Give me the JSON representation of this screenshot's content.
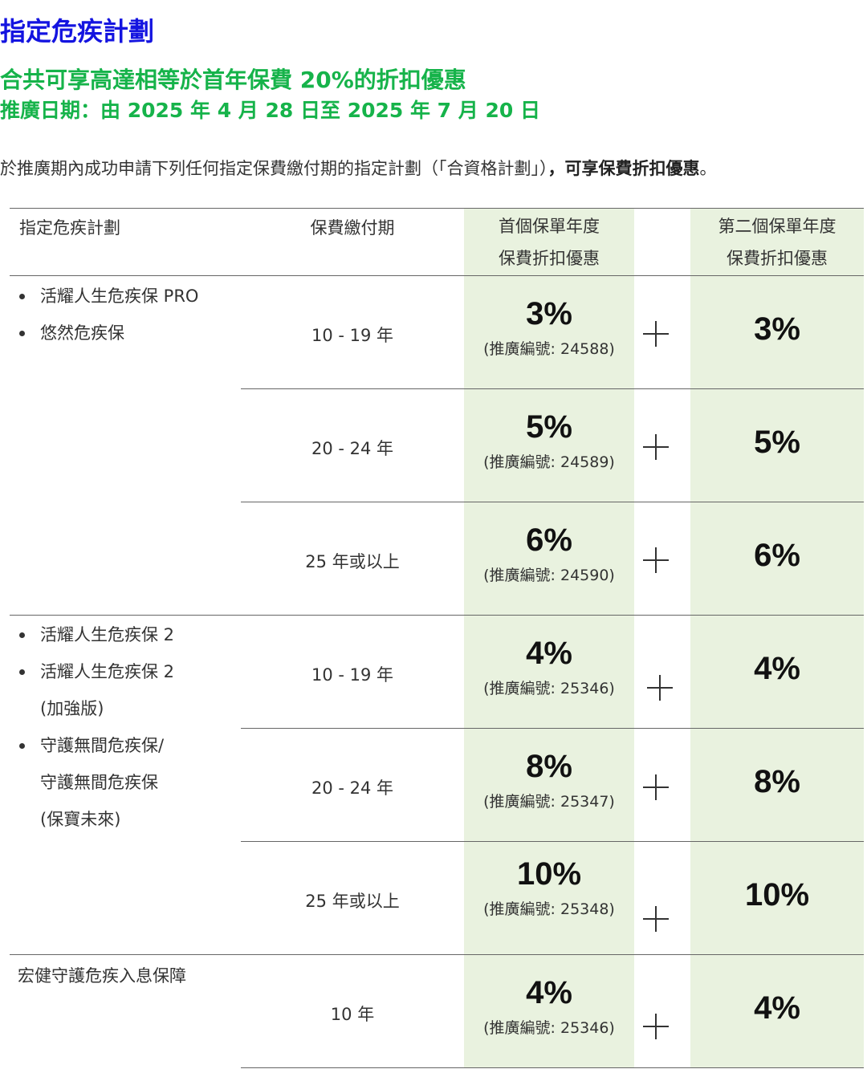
{
  "title": "指定危疾計劃",
  "subtitle": "合共可享高達相等於首年保費 20%的折扣優惠",
  "promo_date": "推廣日期：由 2025 年 4 月 28 日至 2025 年 7 月 20 日",
  "intro": {
    "text": "於推廣期內成功申請下列任何指定保費繳付期的指定計劃（「合資格計劃」）",
    "bold": "，可享保費折扣優惠",
    "end": "。"
  },
  "table": {
    "headers": {
      "plan": "指定危疾計劃",
      "term": "保費繳付期",
      "first_line1": "首個保單年度",
      "first_line2": "保費折扣優惠",
      "second_line1": "第二個保單年度",
      "second_line2": "保費折扣優惠"
    },
    "group1": [
      "活耀人生危疾保 PRO",
      "悠然危疾保"
    ],
    "group2": {
      "item1": "活耀人生危疾保 2",
      "item2_line1": "活耀人生危疾保 2",
      "item2_line2": "(加強版)",
      "item3_line1": "守護無間危疾保/",
      "item3_line2": "守護無間危疾保",
      "item3_line3": "(保寶未來)"
    },
    "group3": "宏健守護危疾入息保障",
    "rows": [
      {
        "term": "10 - 19 年",
        "first": "3%",
        "code": "(推廣編號: 24588)",
        "second": "3%"
      },
      {
        "term": "20 - 24 年",
        "first": "5%",
        "code": "(推廣編號: 24589)",
        "second": "5%"
      },
      {
        "term": "25 年或以上",
        "first": "6%",
        "code": "(推廣編號: 24590)",
        "second": "6%"
      },
      {
        "term": "10 - 19 年",
        "first": "4%",
        "code": "(推廣編號: 25346)",
        "second": "4%"
      },
      {
        "term": "20 - 24 年",
        "first": "8%",
        "code": "(推廣編號: 25347)",
        "second": "8%"
      },
      {
        "term": "25 年或以上",
        "first": "10%",
        "code": "(推廣編號: 25348)",
        "second": "10%"
      },
      {
        "term": "10 年",
        "first": "4%",
        "code": "(推廣編號: 25346)",
        "second": "4%"
      }
    ]
  },
  "colors": {
    "title": "#1414e0",
    "accent_green": "#16b34a",
    "column_bg": "#e9f2df"
  },
  "icons": [
    "plus-icon",
    "bullet-icon"
  ]
}
